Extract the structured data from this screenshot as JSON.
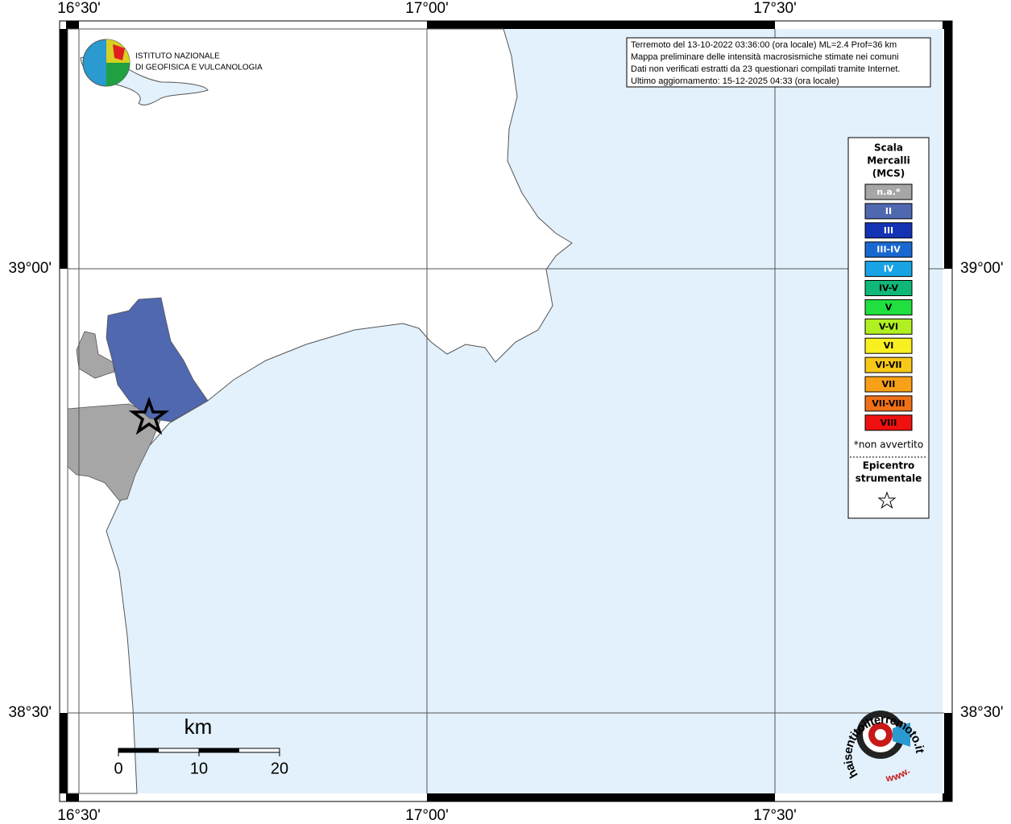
{
  "map": {
    "lon_labels": [
      "16°30'",
      "17°00'",
      "17°30'"
    ],
    "lat_labels": [
      "39°00'",
      "38°30'"
    ],
    "info": [
      "Terremoto del 13-10-2022 03:36:00 (ora locale) ML=2.4 Prof=36 km",
      "Mappa preliminare delle intensità macrosismiche stimate nei comuni",
      "Dati non verificati estratti da 23 questionari compilati tramite Internet.",
      "Ultimo aggiornamento: 15-12-2025 04:33 (ora locale)"
    ],
    "logo": [
      "ISTITUTO NAZIONALE",
      "DI GEOFISICA E VULCANOLOGIA"
    ],
    "legend": {
      "title": [
        "Scala",
        "Mercalli",
        "(MCS)"
      ],
      "items": [
        {
          "label": "n.a.*",
          "color": "#a6a6a6",
          "text_color": "#ffffff"
        },
        {
          "label": "II",
          "color": "#5068b0",
          "text_color": "#ffffff"
        },
        {
          "label": "III",
          "color": "#1432b4",
          "text_color": "#ffffff"
        },
        {
          "label": "III-IV",
          "color": "#1868d0",
          "text_color": "#ffffff"
        },
        {
          "label": "IV",
          "color": "#18a4e4",
          "text_color": "#ffffff"
        },
        {
          "label": "IV-V",
          "color": "#10b878",
          "text_color": "#000000"
        },
        {
          "label": "V",
          "color": "#20e040",
          "text_color": "#000000"
        },
        {
          "label": "V-VI",
          "color": "#b0f020",
          "text_color": "#000000"
        },
        {
          "label": "VI",
          "color": "#f8f020",
          "text_color": "#000000"
        },
        {
          "label": "VI-VII",
          "color": "#f8c818",
          "text_color": "#000000"
        },
        {
          "label": "VII",
          "color": "#f8a018",
          "text_color": "#000000"
        },
        {
          "label": "VII-VIII",
          "color": "#f07018",
          "text_color": "#000000"
        },
        {
          "label": "VIII",
          "color": "#f01010",
          "text_color": "#000000"
        }
      ],
      "note": "*non avvertito",
      "epicenter": [
        "Epicentro",
        "strumentale"
      ]
    },
    "scale_bar": {
      "unit": "km",
      "labels": [
        "0",
        "10",
        "20"
      ]
    },
    "site_logo": {
      "text": "haisentitoilterremoto.it",
      "prefix": "www."
    }
  }
}
